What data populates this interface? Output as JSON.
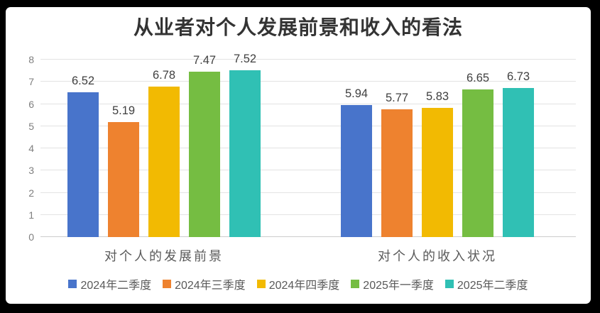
{
  "chart_data": {
    "type": "bar",
    "title": "从业者对个人发展前景和收入的看法",
    "categories": [
      "对个人的发展前景",
      "对个人的收入状况"
    ],
    "series": [
      {
        "name": "2024年二季度",
        "color": "#4874CB",
        "values": [
          6.52,
          5.94
        ]
      },
      {
        "name": "2024年三季度",
        "color": "#EE822F",
        "values": [
          5.19,
          5.77
        ]
      },
      {
        "name": "2024年四季度",
        "color": "#F2BA02",
        "values": [
          6.78,
          5.83
        ]
      },
      {
        "name": "2025年一季度",
        "color": "#75BD42",
        "values": [
          7.47,
          6.65
        ]
      },
      {
        "name": "2025年二季度",
        "color": "#30C0B4",
        "values": [
          7.52,
          6.73
        ]
      }
    ],
    "ylim": [
      0,
      8
    ],
    "yticks": [
      0,
      1,
      2,
      3,
      4,
      5,
      6,
      7,
      8
    ],
    "grid": true,
    "legend_position": "bottom",
    "data_labels": true,
    "xlabel": "",
    "ylabel": ""
  },
  "style": {
    "background": "#000000",
    "plot_background": "#ffffff",
    "gridline_color": "#e3e3e3",
    "axis_label_color": "#7f7f7f",
    "value_label_color": "#404040",
    "title_color": "#333333"
  }
}
